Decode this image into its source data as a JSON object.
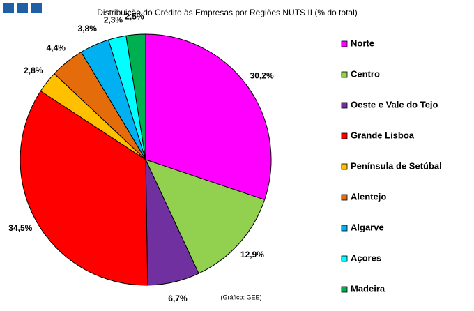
{
  "chart_data": {
    "type": "pie",
    "title": "Distribuição do Crédito às Empresas por Regiões NUTS II (% do total)",
    "note": "(Gráfico: GEE)",
    "categories": [
      "Norte",
      "Centro",
      "Oeste e Vale do Tejo",
      "Grande Lisboa",
      "Península de Setúbal",
      "Alentejo",
      "Algarve",
      "Açores",
      "Madeira"
    ],
    "values": [
      30.2,
      12.9,
      6.7,
      34.5,
      2.8,
      4.4,
      3.8,
      2.3,
      2.5
    ],
    "value_labels": [
      "30,2%",
      "12,9%",
      "6,7%",
      "34,5%",
      "2,8%",
      "4,4%",
      "3,8%",
      "2,3%",
      "2,5%"
    ],
    "colors": [
      "#ff00ff",
      "#92d050",
      "#7030a0",
      "#ff0000",
      "#ffc000",
      "#e46c0a",
      "#00b0f0",
      "#00ffff",
      "#00b050"
    ],
    "legend": "right"
  }
}
